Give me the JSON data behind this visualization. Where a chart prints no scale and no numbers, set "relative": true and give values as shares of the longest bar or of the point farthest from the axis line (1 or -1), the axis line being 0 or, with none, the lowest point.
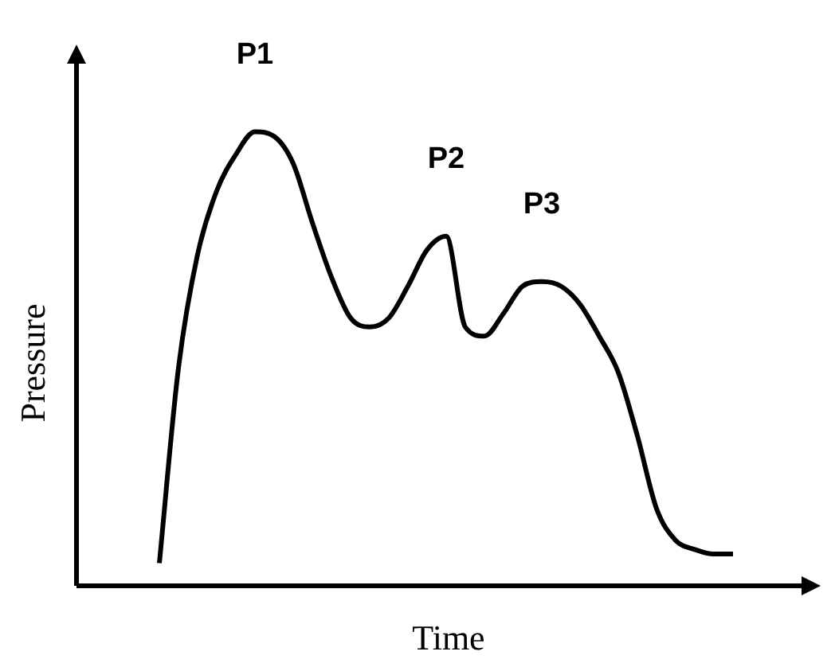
{
  "chart_data": {
    "type": "line",
    "xlabel": "Time",
    "ylabel": "Pressure",
    "relative": true,
    "color": "#000000",
    "categories": [
      null,
      null,
      null,
      null,
      null,
      null,
      null,
      null,
      null,
      null,
      null,
      null,
      null,
      null,
      null,
      null,
      null,
      null,
      null,
      null,
      null,
      null,
      null,
      null,
      null,
      null,
      null,
      null,
      null,
      null,
      null
    ],
    "values": [
      0.05,
      0.48,
      0.73,
      0.87,
      0.95,
      1,
      0.99,
      0.93,
      0.8,
      0.68,
      0.59,
      0.57,
      0.59,
      0.66,
      0.74,
      0.77,
      0.57,
      0.55,
      0.6,
      0.66,
      0.67,
      0.66,
      0.62,
      0.55,
      0.47,
      0.33,
      0.17,
      0.1,
      0.08,
      0.07,
      0.07
    ],
    "annotations": [
      "P1",
      "P2",
      "P3"
    ]
  }
}
